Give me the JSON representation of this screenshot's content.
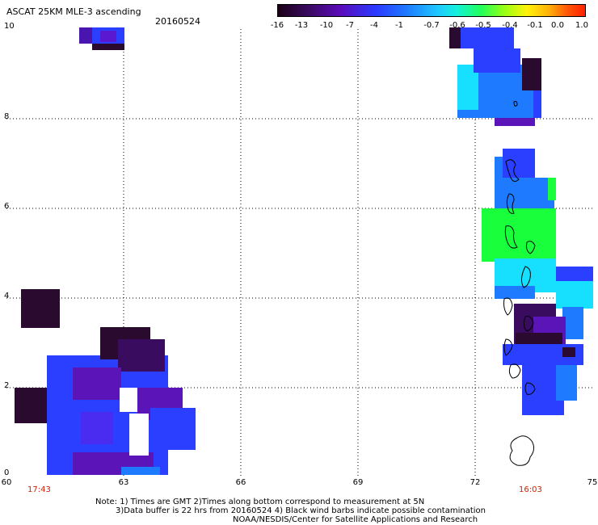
{
  "title": "ASCAT 25KM MLE-3 ascending",
  "date": "20160524",
  "colorbar": {
    "ticks": [
      "-16",
      "-13",
      "-10",
      "-7",
      "-4",
      "-1",
      "-0.7",
      "-0.6",
      "-0.5",
      "-0.4",
      "-0.1",
      "0.0",
      "1.0"
    ]
  },
  "axes": {
    "y_labels": [
      "10",
      "8",
      "6",
      "4",
      "2",
      "0"
    ],
    "x_labels": [
      "60",
      "63",
      "66",
      "69",
      "72",
      "75"
    ]
  },
  "times": {
    "left": "17:43",
    "right": "16:03"
  },
  "notes": {
    "line1": "Note: 1) Times are GMT 2)Times along bottom correspond to measurement at 5N",
    "line2": "3)Data buffer is 22 hrs from 20160524 4) Black wind barbs indicate possible contamination",
    "line3": "NOAA/NESDIS/Center for Satellite Applications and Research"
  },
  "colors": {
    "dark_purple": "#2a0a2e",
    "purple": "#5a12b8",
    "blue": "#2a3fff",
    "mid_blue": "#1e7bff",
    "cyan": "#17e0ff",
    "green": "#1aff3c"
  }
}
